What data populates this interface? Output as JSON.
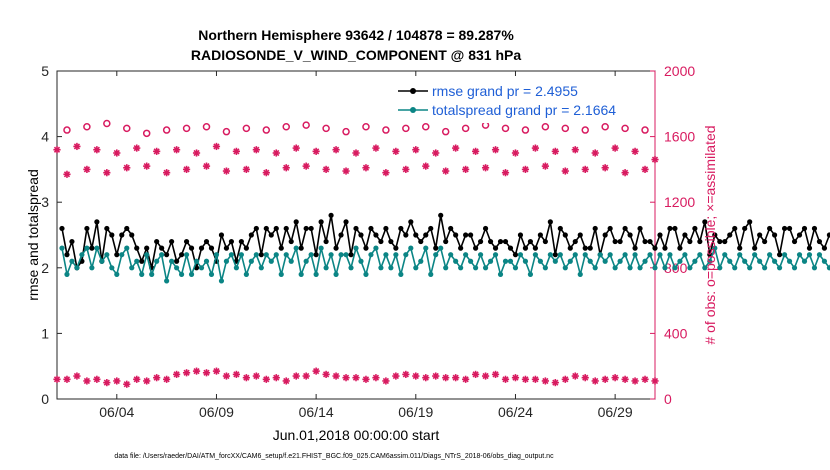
{
  "chart_data": {
    "type": "line",
    "title_line1": "Northern Hemisphere 93642 / 104878 = 89.287%",
    "title_line2": "RADIOSONDE_V_WIND_COMPONENT @ 831 hPa",
    "xlabel": "Jun.01,2018 00:00:00 start",
    "ylabel_left": "rmse and totalspread",
    "ylabel_right": "# of obs: o=possible; ×=assimilated",
    "xlim": [
      1,
      31
    ],
    "ylim_left": [
      0,
      5
    ],
    "ylim_right": [
      0,
      2000
    ],
    "x_ticks": [
      {
        "value": 4,
        "label": "06/04"
      },
      {
        "value": 9,
        "label": "06/09"
      },
      {
        "value": 14,
        "label": "06/14"
      },
      {
        "value": 19,
        "label": "06/19"
      },
      {
        "value": 24,
        "label": "06/24"
      },
      {
        "value": 29,
        "label": "06/29"
      }
    ],
    "y_ticks_left": [
      "0",
      "1",
      "2",
      "3",
      "4",
      "5"
    ],
    "y_ticks_right": [
      "0",
      "400",
      "800",
      "1200",
      "1600",
      "2000"
    ],
    "footer": "data file: /Users/raeder/DAI/ATM_forcXX/CAM6_setup/f.e21.FHIST_BGC.f09_025.CAM6assim.011/Diags_NTrS_2018-06/obs_diag_output.nc",
    "colors": {
      "rmse": "#000000",
      "spread": "#0b8585",
      "obs": "#d81b60",
      "legend_text": "#1f5fd6"
    },
    "series": [
      {
        "name": "rmse grand pr = 2.4955",
        "axis": "left",
        "x_start": 1.25,
        "x_step": 0.25,
        "values": [
          2.6,
          2.2,
          2.4,
          2.0,
          2.1,
          2.6,
          2.3,
          2.7,
          2.1,
          2.6,
          2.5,
          2.2,
          2.5,
          2.6,
          2.5,
          2.3,
          2.1,
          2.3,
          2.0,
          2.4,
          2.3,
          2.2,
          2.4,
          2.1,
          2.2,
          2.4,
          2.3,
          2.0,
          2.3,
          2.4,
          2.3,
          2.1,
          2.5,
          2.3,
          2.4,
          2.1,
          2.4,
          2.3,
          2.5,
          2.6,
          2.2,
          2.6,
          2.5,
          2.6,
          2.3,
          2.6,
          2.4,
          2.7,
          2.3,
          2.6,
          2.6,
          2.2,
          2.7,
          2.4,
          2.8,
          2.3,
          2.5,
          2.7,
          2.2,
          2.6,
          2.5,
          2.3,
          2.6,
          2.5,
          2.4,
          2.6,
          2.4,
          2.3,
          2.6,
          2.5,
          2.7,
          2.5,
          2.4,
          2.5,
          2.6,
          2.3,
          2.8,
          2.4,
          2.6,
          2.5,
          2.3,
          2.5,
          2.5,
          2.3,
          2.4,
          2.6,
          2.4,
          2.3,
          2.4,
          2.4,
          2.3,
          2.2,
          2.5,
          2.3,
          2.4,
          2.3,
          2.5,
          2.4,
          2.7,
          2.2,
          2.6,
          2.5,
          2.3,
          2.4,
          2.5,
          2.3,
          2.3,
          2.6,
          2.2,
          2.5,
          2.6,
          2.4,
          2.4,
          2.6,
          2.5,
          2.3,
          2.6,
          2.4,
          2.4,
          2.3,
          2.5,
          2.3,
          2.6,
          2.6,
          2.3,
          2.5,
          2.4,
          2.6,
          2.4,
          2.7,
          2.2,
          2.5,
          2.4,
          2.4,
          2.5,
          2.6,
          2.3,
          2.6,
          2.7,
          2.3,
          2.5,
          2.4,
          2.6,
          2.5,
          2.2,
          2.6,
          2.6,
          2.4,
          2.5,
          2.6,
          2.3,
          2.6,
          2.4,
          2.3,
          2.5,
          2.4,
          2.3,
          2.1,
          2.5,
          2.6,
          2.5,
          2.4,
          2.2,
          2.5,
          2.3,
          2.6,
          2.4,
          2.5,
          2.3,
          2.2,
          2.5,
          2.5,
          2.2,
          2.6,
          3.2
        ]
      },
      {
        "name": "totalspread grand pr = 2.1664",
        "axis": "left",
        "x_start": 1.25,
        "x_step": 0.25,
        "values": [
          2.3,
          1.9,
          2.1,
          2.0,
          2.2,
          2.3,
          2.0,
          2.3,
          2.1,
          2.2,
          2.0,
          1.9,
          2.2,
          2.3,
          2.0,
          2.1,
          1.9,
          2.2,
          1.9,
          2.1,
          2.2,
          1.8,
          2.1,
          2.0,
          1.9,
          2.2,
          1.9,
          2.1,
          2.0,
          2.1,
          1.9,
          2.2,
          1.8,
          2.1,
          2.2,
          2.0,
          2.2,
          1.9,
          2.1,
          2.2,
          2.0,
          2.2,
          2.1,
          2.2,
          1.9,
          2.2,
          2.1,
          2.3,
          1.9,
          2.1,
          2.2,
          1.9,
          2.3,
          2.0,
          2.2,
          1.9,
          2.2,
          2.2,
          2.0,
          2.3,
          2.1,
          1.9,
          2.2,
          2.3,
          2.0,
          2.2,
          2.0,
          2.2,
          1.9,
          2.2,
          2.3,
          2.0,
          2.1,
          2.3,
          1.9,
          2.2,
          2.3,
          2.0,
          2.2,
          2.1,
          2.0,
          2.2,
          2.1,
          2.0,
          2.2,
          2.0,
          2.1,
          2.2,
          1.9,
          2.1,
          2.1,
          2.0,
          2.2,
          2.1,
          1.9,
          2.2,
          2.1,
          2.0,
          2.2,
          2.1,
          2.2,
          2.0,
          2.1,
          2.2,
          1.9,
          2.2,
          2.1,
          2.0,
          2.2,
          2.1,
          2.2,
          2.0,
          2.1,
          2.2,
          2.0,
          2.2,
          2.0,
          2.1,
          2.2,
          2.0,
          2.2,
          2.0,
          2.2,
          2.0,
          2.1,
          2.2,
          2.0,
          2.1,
          2.2,
          2.0,
          2.1,
          2.3,
          2.0,
          2.2,
          2.1,
          2.0,
          2.2,
          2.1,
          2.0,
          2.2,
          2.1,
          2.0,
          2.2,
          2.1,
          2.0,
          2.2,
          2.1,
          2.0,
          2.2,
          2.1,
          2.2,
          2.0,
          2.2,
          2.1,
          2.0,
          2.2,
          2.1,
          2.0,
          2.2,
          2.1,
          2.0,
          2.2,
          2.1,
          2.3,
          2.0,
          2.2,
          2.1,
          2.0,
          2.2,
          2.1,
          2.2,
          1.9,
          2.3,
          2.3
        ]
      },
      {
        "name": "obs possible (upper band)",
        "axis": "right",
        "marker": "circle",
        "x_start": 1.5,
        "x_step": 1.0,
        "values": [
          1640,
          1660,
          1680,
          1650,
          1620,
          1640,
          1650,
          1660,
          1630,
          1650,
          1640,
          1660,
          1670,
          1650,
          1630,
          1660,
          1640,
          1650,
          1660,
          1630,
          1650,
          1670,
          1650,
          1640,
          1660,
          1650,
          1640,
          1660,
          1650,
          1640
        ]
      },
      {
        "name": "obs assimilated (upper band)",
        "axis": "right",
        "marker": "star",
        "x_start": 1.0,
        "x_step": 0.5,
        "values": [
          1520,
          1370,
          1540,
          1400,
          1520,
          1380,
          1500,
          1410,
          1530,
          1420,
          1510,
          1380,
          1520,
          1400,
          1500,
          1420,
          1540,
          1390,
          1510,
          1400,
          1520,
          1380,
          1500,
          1410,
          1530,
          1420,
          1510,
          1400,
          1520,
          1390,
          1500,
          1410,
          1530,
          1380,
          1510,
          1400,
          1520,
          1420,
          1500,
          1390,
          1530,
          1400,
          1510,
          1410,
          1520,
          1380,
          1500,
          1400,
          1530,
          1420,
          1510,
          1390,
          1520,
          1400,
          1500,
          1410,
          1530,
          1380,
          1510,
          1400,
          1460
        ]
      },
      {
        "name": "obs lower band",
        "axis": "right",
        "marker": "star",
        "x_start": 1.0,
        "x_step": 0.5,
        "values": [
          120,
          120,
          140,
          110,
          120,
          100,
          110,
          90,
          120,
          110,
          130,
          120,
          150,
          160,
          170,
          160,
          170,
          140,
          150,
          130,
          140,
          120,
          130,
          110,
          140,
          140,
          170,
          150,
          140,
          130,
          130,
          120,
          130,
          110,
          140,
          150,
          140,
          130,
          140,
          130,
          130,
          120,
          150,
          140,
          150,
          120,
          130,
          120,
          120,
          110,
          100,
          120,
          140,
          130,
          110,
          120,
          130,
          120,
          110,
          120,
          110
        ]
      }
    ]
  }
}
